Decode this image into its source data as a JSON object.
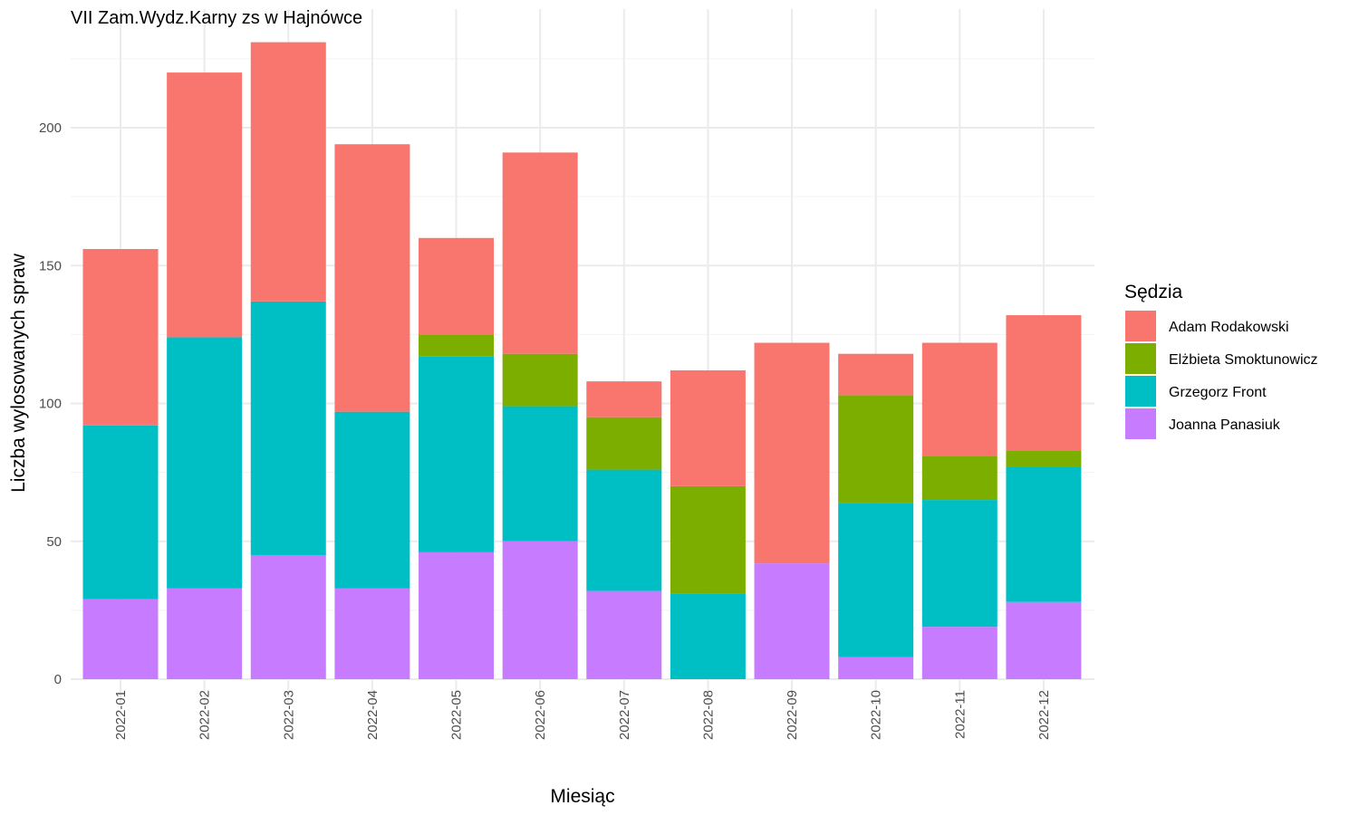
{
  "chart_data": {
    "type": "bar",
    "stacked": true,
    "title": "VII Zam.Wydz.Karny zs w Hajnówce",
    "xlabel": "Miesiąc",
    "ylabel": "Liczba wylosowanych spraw",
    "ylim": [
      0,
      232
    ],
    "yticks": [
      0,
      50,
      100,
      150,
      200
    ],
    "grid": true,
    "legend_position": "right",
    "legend_title": "Sędzia",
    "categories": [
      "2022-01",
      "2022-02",
      "2022-03",
      "2022-04",
      "2022-05",
      "2022-06",
      "2022-07",
      "2022-08",
      "2022-09",
      "2022-10",
      "2022-11",
      "2022-12"
    ],
    "series": [
      {
        "name": "Adam Rodakowski",
        "color": "#F8766D",
        "values": [
          64,
          96,
          94,
          97,
          35,
          73,
          13,
          42,
          80,
          15,
          41,
          49
        ]
      },
      {
        "name": "Elżbieta Smoktunowicz",
        "color": "#7CAE00",
        "values": [
          0,
          0,
          0,
          0,
          8,
          19,
          19,
          39,
          0,
          39,
          16,
          6
        ]
      },
      {
        "name": "Grzegorz Front",
        "color": "#00BFC4",
        "values": [
          63,
          91,
          92,
          64,
          71,
          49,
          44,
          31,
          0,
          56,
          46,
          49
        ]
      },
      {
        "name": "Joanna Panasiuk",
        "color": "#C77CFF",
        "values": [
          29,
          33,
          45,
          33,
          46,
          50,
          32,
          0,
          42,
          8,
          19,
          28
        ]
      }
    ]
  }
}
